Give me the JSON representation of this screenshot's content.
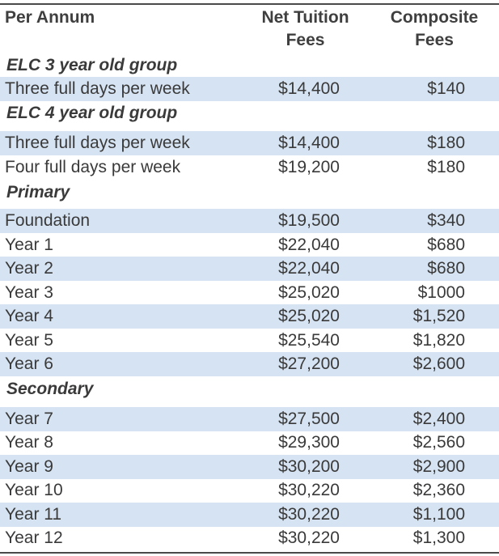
{
  "header": {
    "per_annum": "Per Annum",
    "net_tuition": [
      "Net Tuition",
      "Fees"
    ],
    "composite": [
      "Composite",
      "Fees"
    ]
  },
  "sections": [
    {
      "title": "ELC 3 year old group",
      "rows": [
        {
          "label": "Three full days per week",
          "tuition": "$14,400",
          "composite": "$140",
          "shaded": true
        }
      ]
    },
    {
      "title": "ELC 4 year old group",
      "rows": [
        {
          "label": "Three full days per week",
          "tuition": "$14,400",
          "composite": "$180",
          "shaded": true
        },
        {
          "label": "Four full days per week",
          "tuition": "$19,200",
          "composite": "$180",
          "shaded": false
        }
      ]
    },
    {
      "title": "Primary",
      "rows": [
        {
          "label": "Foundation",
          "tuition": "$19,500",
          "composite": "$340",
          "shaded": true
        },
        {
          "label": "Year 1",
          "tuition": "$22,040",
          "composite": "$680",
          "shaded": false
        },
        {
          "label": "Year 2",
          "tuition": "$22,040",
          "composite": "$680",
          "shaded": true
        },
        {
          "label": "Year 3",
          "tuition": "$25,020",
          "composite": "$1000",
          "shaded": false
        },
        {
          "label": "Year 4",
          "tuition": "$25,020",
          "composite": "$1,520",
          "shaded": true
        },
        {
          "label": "Year 5",
          "tuition": "$25,540",
          "composite": "$1,820",
          "shaded": false
        },
        {
          "label": "Year 6",
          "tuition": "$27,200",
          "composite": "$2,600",
          "shaded": true
        }
      ]
    },
    {
      "title": "Secondary",
      "rows": [
        {
          "label": "Year 7",
          "tuition": "$27,500",
          "composite": "$2,400",
          "shaded": true
        },
        {
          "label": "Year 8",
          "tuition": "$29,300",
          "composite": "$2,560",
          "shaded": false
        },
        {
          "label": "Year 9",
          "tuition": "$30,200",
          "composite": "$2,900",
          "shaded": true
        },
        {
          "label": "Year 10",
          "tuition": "$30,220",
          "composite": "$2,360",
          "shaded": false
        },
        {
          "label": "Year 11",
          "tuition": "$30,220",
          "composite": "$1,100",
          "shaded": true
        },
        {
          "label": "Year 12",
          "tuition": "$30,220",
          "composite": "$1,300",
          "shaded": false
        }
      ]
    }
  ]
}
